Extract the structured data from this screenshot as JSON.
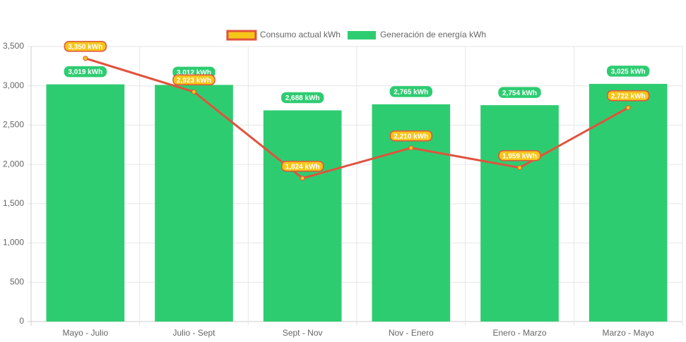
{
  "chart_data": {
    "type": "bar",
    "categories": [
      "Mayo - Julio",
      "Julio - Sept",
      "Sept - Nov",
      "Nov - Enero",
      "Enero - Marzo",
      "Marzo - Mayo"
    ],
    "series": [
      {
        "name": "Consumo actual kWh",
        "type": "line",
        "color": "#e0533d",
        "fill": "#f5c518",
        "values": [
          3350,
          2923,
          1824,
          2210,
          1959,
          2722
        ],
        "value_labels": [
          "3,350 kWh",
          "2,923 kWh",
          "1,824 kWh",
          "2,210 kWh",
          "1,959 kWh",
          "2,722 kWh"
        ]
      },
      {
        "name": "Generación de energía kWh",
        "type": "bar",
        "color": "#2ecc71",
        "values": [
          3019,
          3012,
          2688,
          2765,
          2754,
          3025
        ],
        "value_labels": [
          "3,019 kWh",
          "3,012 kWh",
          "2,688 kWh",
          "2,765 kWh",
          "2,754 kWh",
          "3,025 kWh"
        ]
      }
    ],
    "ylim": [
      0,
      3500
    ],
    "yticks": [
      0,
      500,
      {
        "value": 1000,
        "label": "1,000"
      },
      {
        "value": 1500,
        "label": "1,500"
      },
      {
        "value": 2000,
        "label": "2,000"
      },
      {
        "value": 2500,
        "label": "2,500"
      },
      {
        "value": 3000,
        "label": "3,000"
      },
      {
        "value": 3500,
        "label": "3,500"
      }
    ],
    "grid": true,
    "legend": "top"
  }
}
